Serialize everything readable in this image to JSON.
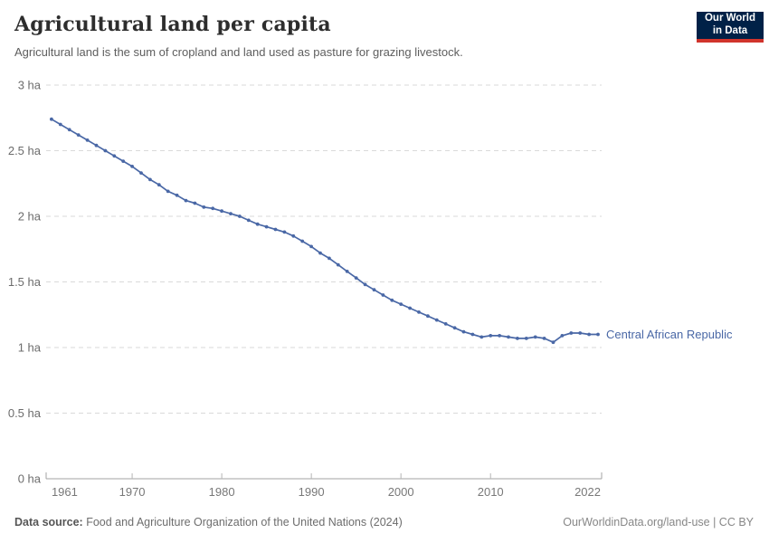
{
  "header": {
    "title": "Agricultural land per capita",
    "subtitle": "Agricultural land is the sum of cropland and land used as pasture for grazing livestock."
  },
  "logo": {
    "line1": "Our World",
    "line2": "in Data",
    "bg_color": "#002147",
    "accent_color": "#d1342c"
  },
  "chart_data": {
    "type": "line",
    "title": "Agricultural land per capita",
    "xlabel": "",
    "ylabel": "",
    "unit": "ha",
    "grid": "horizontal-dashed",
    "xlim": [
      1960.4,
      2022.4
    ],
    "ylim": [
      0,
      3
    ],
    "x_ticks": [
      {
        "value": 1961,
        "label": "1961",
        "anchor": "start"
      },
      {
        "value": 1970,
        "label": "1970"
      },
      {
        "value": 1980,
        "label": "1980"
      },
      {
        "value": 1990,
        "label": "1990"
      },
      {
        "value": 2000,
        "label": "2000"
      },
      {
        "value": 2010,
        "label": "2010"
      },
      {
        "value": 2022,
        "label": "2022",
        "anchor": "end"
      }
    ],
    "y_ticks": [
      {
        "value": 0,
        "label": "0 ha"
      },
      {
        "value": 0.5,
        "label": "0.5 ha"
      },
      {
        "value": 1,
        "label": "1 ha"
      },
      {
        "value": 1.5,
        "label": "1.5 ha"
      },
      {
        "value": 2,
        "label": "2 ha"
      },
      {
        "value": 2.5,
        "label": "2.5 ha"
      },
      {
        "value": 3,
        "label": "3 ha"
      }
    ],
    "series": [
      {
        "name": "Central African Republic",
        "color": "#4a68a6",
        "years": [
          1961,
          1962,
          1963,
          1964,
          1965,
          1966,
          1967,
          1968,
          1969,
          1970,
          1971,
          1972,
          1973,
          1974,
          1975,
          1976,
          1977,
          1978,
          1979,
          1980,
          1981,
          1982,
          1983,
          1984,
          1985,
          1986,
          1987,
          1988,
          1989,
          1990,
          1991,
          1992,
          1993,
          1994,
          1995,
          1996,
          1997,
          1998,
          1999,
          2000,
          2001,
          2002,
          2003,
          2004,
          2005,
          2006,
          2007,
          2008,
          2009,
          2010,
          2011,
          2012,
          2013,
          2014,
          2015,
          2016,
          2017,
          2018,
          2019,
          2020,
          2021,
          2022
        ],
        "values": [
          2.74,
          2.7,
          2.66,
          2.62,
          2.58,
          2.54,
          2.5,
          2.46,
          2.42,
          2.38,
          2.33,
          2.28,
          2.24,
          2.19,
          2.16,
          2.12,
          2.1,
          2.07,
          2.06,
          2.04,
          2.02,
          2.0,
          1.97,
          1.94,
          1.92,
          1.9,
          1.88,
          1.85,
          1.81,
          1.77,
          1.72,
          1.68,
          1.63,
          1.58,
          1.53,
          1.48,
          1.44,
          1.4,
          1.36,
          1.33,
          1.3,
          1.27,
          1.24,
          1.21,
          1.18,
          1.15,
          1.12,
          1.1,
          1.08,
          1.09,
          1.09,
          1.08,
          1.07,
          1.07,
          1.08,
          1.07,
          1.04,
          1.09,
          1.11,
          1.11,
          1.1,
          1.1
        ]
      }
    ]
  },
  "footer": {
    "source_label": "Data source:",
    "source_text": "Food and Agriculture Organization of the United Nations (2024)",
    "credit": "OurWorldinData.org/land-use | CC BY"
  }
}
